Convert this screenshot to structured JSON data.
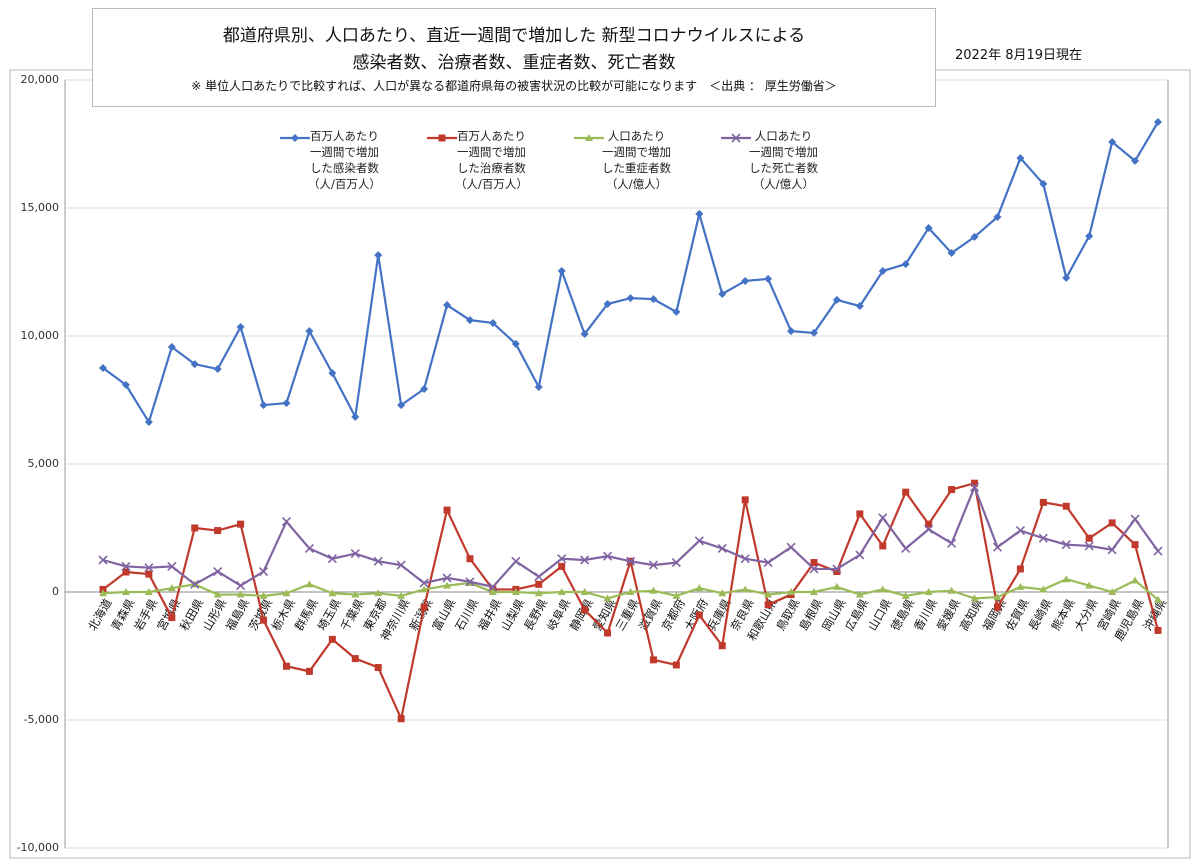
{
  "chart_data": {
    "type": "line",
    "title": "都道府県別、人口あたり、直近一週間で増加した 新型コロナウイルスによる",
    "subtitle": "感染者数、治療者数、重症者数、死亡者数",
    "note": "※ 単位人口あたりで比較すれば、人口が異なる都道府県毎の被害状況の比較が可能になります　＜出典 ： 厚生労働省＞",
    "date": "2022年 8月19日現在",
    "categories": [
      "北海道",
      "青森県",
      "岩手県",
      "宮城県",
      "秋田県",
      "山形県",
      "福島県",
      "茨城県",
      "栃木県",
      "群馬県",
      "埼玉県",
      "千葉県",
      "東京都",
      "神奈川県",
      "新潟県",
      "富山県",
      "石川県",
      "福井県",
      "山梨県",
      "長野県",
      "岐阜県",
      "静岡県",
      "愛知県",
      "三重県",
      "滋賀県",
      "京都府",
      "大阪府",
      "兵庫県",
      "奈良県",
      "和歌山県",
      "鳥取県",
      "島根県",
      "岡山県",
      "広島県",
      "山口県",
      "徳島県",
      "香川県",
      "愛媛県",
      "高知県",
      "福岡県",
      "佐賀県",
      "長崎県",
      "熊本県",
      "大分県",
      "宮崎県",
      "鹿児島県",
      "沖縄県"
    ],
    "series": [
      {
        "name": "百万人あたり\n一週間で増加\nした感染者数\n（人/百万人）",
        "color": "#4472c4",
        "marker": "diamond",
        "values": [
          8750,
          8090,
          6640,
          9570,
          8900,
          8710,
          10350,
          7300,
          7380,
          10190,
          8550,
          6840,
          13160,
          7300,
          7930,
          11210,
          10620,
          10510,
          9690,
          8010,
          12540,
          10080,
          11250,
          11480,
          11440,
          10940,
          14770,
          11640,
          12150,
          12230,
          10190,
          10120,
          11410,
          11170,
          12540,
          12810,
          14220,
          13240,
          13870,
          14650,
          16950,
          15940,
          12270,
          13900,
          17580,
          16840,
          18360
        ]
      },
      {
        "name": "百万人あたり\n一週間で増加\nした治療者数\n（人/百万人）",
        "color": "#c0392b",
        "marker": "square",
        "values": [
          100,
          780,
          700,
          -1000,
          2500,
          2400,
          2650,
          -1100,
          -2900,
          -3100,
          -1850,
          -2600,
          -2950,
          -4950,
          -600,
          3200,
          1300,
          100,
          100,
          300,
          1000,
          -700,
          -1600,
          1200,
          -2650,
          -2850,
          -900,
          -2100,
          3600,
          -500,
          -100,
          1150,
          800,
          3050,
          1800,
          3900,
          2650,
          4000,
          4250,
          -600,
          900,
          3500,
          3350,
          2100,
          2700,
          1850,
          -1500
        ]
      },
      {
        "name": "人口あたり\n一週間で増加\nした重症者数\n（人/億人）",
        "color": "#9bbb59",
        "marker": "triangle",
        "values": [
          -50,
          0,
          0,
          150,
          300,
          -100,
          -100,
          -150,
          -50,
          300,
          -50,
          -100,
          -50,
          -150,
          100,
          250,
          350,
          0,
          0,
          -50,
          0,
          0,
          -250,
          0,
          50,
          -150,
          150,
          -50,
          100,
          -100,
          0,
          0,
          200,
          -100,
          100,
          -150,
          0,
          50,
          -250,
          -200,
          200,
          100,
          500,
          250,
          0,
          450,
          -300
        ]
      },
      {
        "name": "人口あたり\n一週間で増加\nした死亡者数\n（人/億人）",
        "color": "#8064a2",
        "marker": "x",
        "values": [
          1250,
          1000,
          950,
          1000,
          300,
          800,
          250,
          800,
          2750,
          1700,
          1300,
          1500,
          1200,
          1050,
          350,
          550,
          400,
          200,
          1200,
          600,
          1300,
          1250,
          1400,
          1200,
          1050,
          1150,
          2000,
          1700,
          1300,
          1150,
          1750,
          900,
          900,
          1450,
          2900,
          1700,
          2450,
          1900,
          4100,
          1750,
          2400,
          2100,
          1850,
          1800,
          1650,
          2850,
          1600
        ]
      }
    ],
    "ylim": [
      -10000,
      20000
    ],
    "yticks": [
      {
        "value": -10000,
        "label": "-10,000"
      },
      {
        "value": -5000,
        "label": "-5,000"
      },
      0,
      {
        "value": 5000,
        "label": "5,000"
      },
      {
        "value": 10000,
        "label": "10,000"
      },
      {
        "value": 15000,
        "label": "15,000"
      },
      {
        "value": 20000,
        "label": "20,000"
      }
    ],
    "grid": true
  }
}
